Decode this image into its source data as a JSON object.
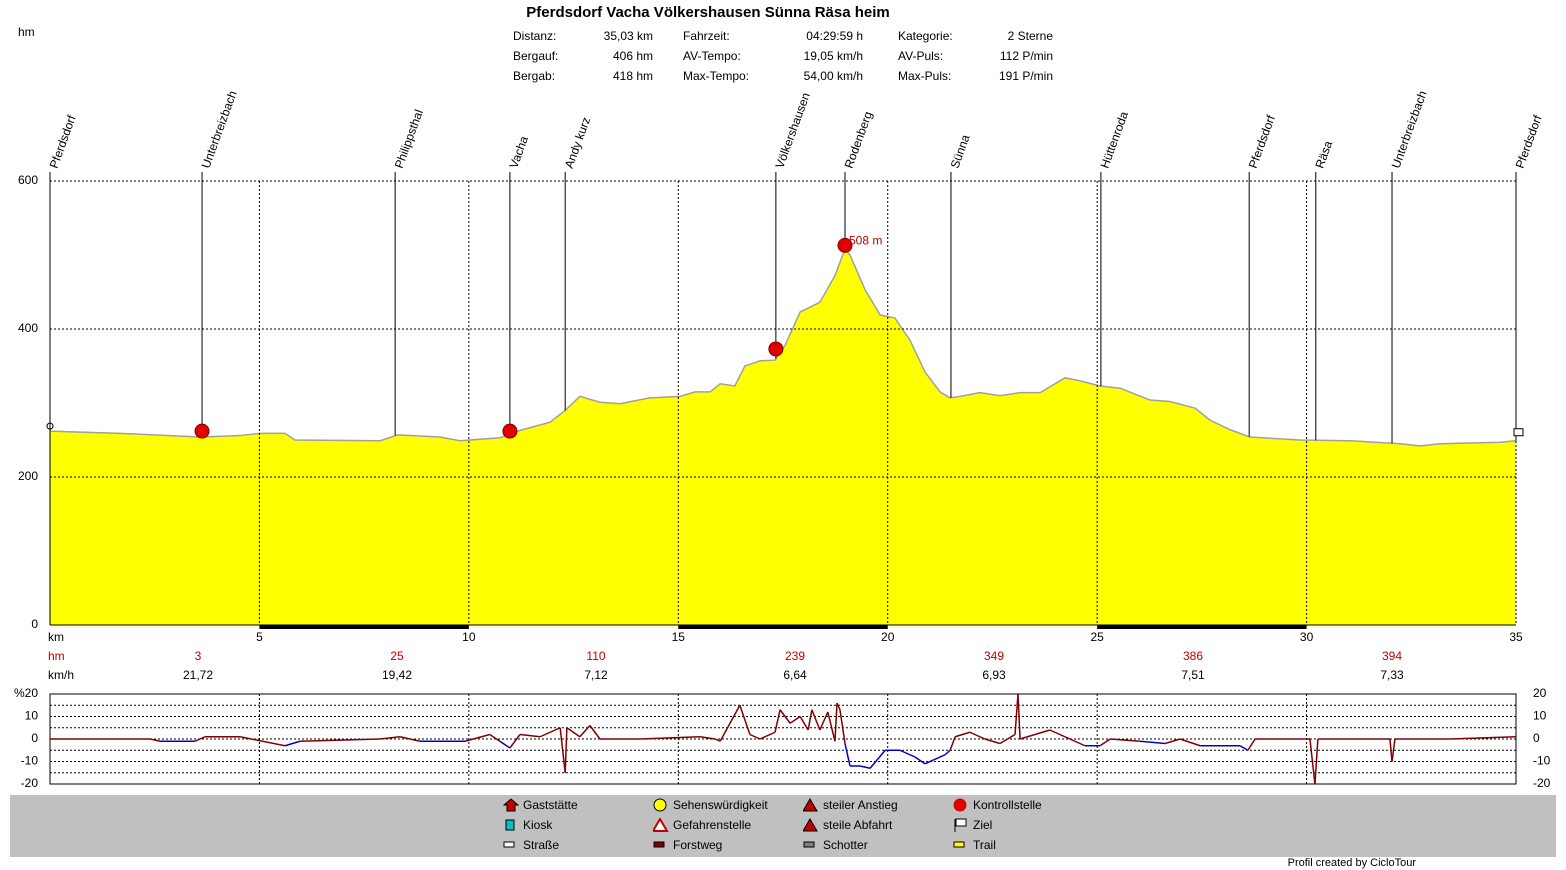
{
  "chart_data": {
    "type": "area",
    "title": "Pferdsdorf Vacha Völkershausen Sünna Räsa heim",
    "y_label": "hm",
    "x_label": "km",
    "stats": [
      {
        "label": "Distanz:",
        "value": "35,03 km"
      },
      {
        "label": "Bergauf:",
        "value": "406 hm"
      },
      {
        "label": "Bergab:",
        "value": "418 hm"
      },
      {
        "label": "Fahrzeit:",
        "value": "04:29:59 h"
      },
      {
        "label": "AV-Tempo:",
        "value": "19,05 km/h"
      },
      {
        "label": "Max-Tempo:",
        "value": "54,00 km/h"
      },
      {
        "label": "Kategorie:",
        "value": "2 Sterne"
      },
      {
        "label": "AV-Puls:",
        "value": "112 P/min"
      },
      {
        "label": "Max-Puls:",
        "value": "191 P/min"
      }
    ],
    "waypoints": [
      {
        "name": "Pferdsdorf",
        "km": 0
      },
      {
        "name": "Unterbreizbach",
        "km": 3.63
      },
      {
        "name": "Philippsthal",
        "km": 8.24
      },
      {
        "name": "Vacha",
        "km": 10.98
      },
      {
        "name": "Andy kurz",
        "km": 12.3
      },
      {
        "name": "Völkershausen",
        "km": 17.33
      },
      {
        "name": "Rodenberg",
        "km": 18.98
      },
      {
        "name": "Sünna",
        "km": 21.51
      },
      {
        "name": "Hüttenroda",
        "km": 25.09
      },
      {
        "name": "Pferdsdorf",
        "km": 28.63
      },
      {
        "name": "Räsa",
        "km": 30.22
      },
      {
        "name": "Unterbreizbach",
        "km": 32.04
      },
      {
        "name": "Pferdsdorf",
        "km": 35
      }
    ],
    "x": [
      0,
      1.67,
      3.58,
      4.54,
      5.01,
      5.61,
      5.85,
      7.88,
      8.31,
      9.31,
      9.79,
      10.74,
      11.22,
      11.94,
      12.3,
      12.65,
      13.13,
      13.61,
      14.32,
      15.04,
      15.4,
      15.76,
      16,
      16.35,
      16.59,
      16.95,
      17.31,
      17.55,
      17.91,
      18.38,
      18.74,
      18.98,
      19.1,
      19.46,
      19.82,
      20.17,
      20.53,
      20.89,
      21.25,
      21.49,
      21.73,
      22.2,
      22.68,
      23.16,
      23.64,
      24.23,
      24.59,
      25.07,
      25.55,
      26.26,
      26.74,
      27.34,
      27.69,
      28.17,
      28.65,
      29.84,
      31.04,
      32.23,
      32.71,
      33.19,
      34.62,
      35
    ],
    "values": [
      262,
      259,
      254,
      256,
      259,
      259,
      250,
      249,
      257,
      254,
      249,
      253,
      263,
      274,
      290,
      309,
      301,
      299,
      307,
      309,
      315,
      315,
      326,
      323,
      350,
      357,
      358,
      378,
      423,
      436,
      472,
      508,
      500,
      453,
      419,
      415,
      385,
      342,
      315,
      307,
      309,
      314,
      310,
      314,
      314,
      334,
      330,
      323,
      320,
      304,
      302,
      293,
      277,
      264,
      254,
      250,
      249,
      245,
      242,
      245,
      247,
      249
    ],
    "color": "#ffff00",
    "line_color": "#a0a0a0",
    "peak": {
      "km": 18.98,
      "value": 508,
      "label": "508 m"
    },
    "checkpoints": [
      {
        "km": 3.63,
        "value": 262
      },
      {
        "km": 10.98,
        "value": 262
      },
      {
        "km": 17.33,
        "value": 373
      },
      {
        "km": 18.98,
        "value": 513
      }
    ],
    "xlim": [
      0,
      35
    ],
    "xticks": [
      5,
      10,
      15,
      20,
      25,
      30,
      35
    ],
    "ylim": [
      0,
      600
    ],
    "yticks": [
      0,
      200,
      400,
      600
    ],
    "grid": true,
    "segment_stats": {
      "hm_label": "hm",
      "kmh_label": "km/h",
      "hm": [
        "3",
        "25",
        "110",
        "239",
        "349",
        "386",
        "394"
      ],
      "kmh": [
        "21,72",
        "19,42",
        "7,12",
        "6,64",
        "6,93",
        "7,51",
        "7,33"
      ]
    },
    "gradient": {
      "type": "line",
      "y_label": "%",
      "ylim": [
        -20,
        20
      ],
      "yticks": [
        20,
        10,
        0,
        -10,
        -20
      ],
      "x": [
        0,
        2.39,
        2.63,
        3.46,
        3.7,
        4.54,
        5.61,
        5.97,
        7.88,
        8.36,
        8.83,
        9.91,
        10.5,
        10.74,
        10.98,
        11.22,
        11.7,
        12.18,
        12.3,
        12.34,
        12.65,
        12.89,
        13.13,
        14.09,
        15.52,
        15.88,
        16,
        16.47,
        16.71,
        16.95,
        17.31,
        17.43,
        17.67,
        17.91,
        18.1,
        18.19,
        18.38,
        18.57,
        18.74,
        18.79,
        18.86,
        18.98,
        19.1,
        19.34,
        19.58,
        19.94,
        20.29,
        20.65,
        20.89,
        21.37,
        21.49,
        21.61,
        21.96,
        22.32,
        22.68,
        23.04,
        23.11,
        23.16,
        23.87,
        24.35,
        24.71,
        25.07,
        25.31,
        26.02,
        26.62,
        26.98,
        27.46,
        28.41,
        28.6,
        28.77,
        30.08,
        30.2,
        30.27,
        31.99,
        32.04,
        32.11,
        33.42,
        35
      ],
      "values": [
        0,
        0,
        -1,
        -1,
        1,
        1,
        -3,
        -1,
        0,
        1,
        -1,
        -1,
        2,
        -1,
        -4,
        2,
        1,
        5,
        -15,
        5,
        1,
        6,
        0,
        0,
        1,
        0,
        -1,
        15,
        2,
        0,
        3,
        13,
        7,
        10,
        4,
        13,
        4,
        12,
        -1,
        16,
        13,
        -2,
        -12,
        -12,
        -13,
        -5,
        -5,
        -8,
        -11,
        -7,
        -5,
        1,
        3,
        0,
        -2,
        2,
        20,
        0,
        4,
        0,
        -3,
        -3,
        0,
        -1,
        -2,
        0,
        -3,
        -3,
        -5,
        0,
        0,
        -20,
        0,
        0,
        -10,
        0,
        0,
        1
      ],
      "up_color": "#800000",
      "down_color": "#0000c0"
    },
    "legend": [
      "Gaststätte",
      "Sehenswürdigkeit",
      "steiler Anstieg",
      "Kontrollstelle",
      "Kiosk",
      "Gefahrenstelle",
      "steile Abfahrt",
      "Ziel",
      "Straße",
      "Forstweg",
      "Schotter",
      "Trail"
    ],
    "footer": "Profil created by CicloTour"
  }
}
